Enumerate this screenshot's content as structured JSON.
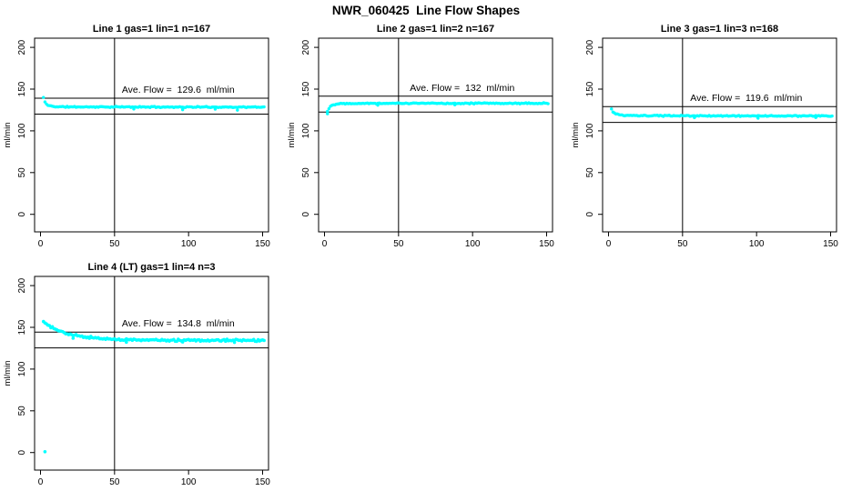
{
  "page": {
    "title": "NWR_060425  Line Flow Shapes",
    "background": "#ffffff"
  },
  "chart_data": {
    "type": "scatter",
    "title": "NWR_060425  Line Flow Shapes",
    "layout": {
      "rows": 2,
      "cols": 3,
      "occupied_cells": 4,
      "grid": "white background, black axis boxes, no gridlines"
    },
    "shared": {
      "xlabel": "",
      "ylabel": "ml/min",
      "xticks": [
        0,
        50,
        100,
        150
      ],
      "yticks": [
        0,
        50,
        100,
        150,
        200
      ],
      "xlim": [
        -4,
        154
      ],
      "ylim": [
        -21,
        211
      ],
      "vline_x": 50,
      "point_color": "#00ffff",
      "axis_color": "#000000"
    },
    "panels": [
      {
        "row": 0,
        "col": 0,
        "seed": 11,
        "title": "Line 1 gas=1 lin=1 n=167",
        "annotation": "Ave. Flow =  129.6  ml/min",
        "ave_flow": 129.6,
        "n": 167,
        "hlines": [
          139.1,
          120.1
        ],
        "n_points": 150,
        "noise": 0.8,
        "point_r": 1.7,
        "keypoints": [
          [
            2,
            140
          ],
          [
            3,
            134.5
          ],
          [
            4,
            131.8
          ],
          [
            5,
            130.8
          ],
          [
            6,
            130.2
          ],
          [
            8,
            129.4
          ],
          [
            10,
            129.0
          ],
          [
            14,
            128.8
          ],
          [
            20,
            128.7
          ],
          [
            60,
            128.6
          ],
          [
            150,
            128.4
          ]
        ],
        "extra_points": [
          [
            63,
            126.2
          ],
          [
            96,
            125.3
          ],
          [
            118,
            126.0
          ],
          [
            133,
            124.8
          ]
        ]
      },
      {
        "row": 0,
        "col": 1,
        "seed": 22,
        "title": "Line 2 gas=1 lin=2 n=167",
        "annotation": "Ave. Flow =  132  ml/min",
        "ave_flow": 132,
        "n": 167,
        "hlines": [
          141.5,
          122.5
        ],
        "n_points": 150,
        "noise": 0.8,
        "point_r": 1.7,
        "keypoints": [
          [
            2,
            123.5
          ],
          [
            3,
            127.0
          ],
          [
            4,
            129.2
          ],
          [
            5,
            130.5
          ],
          [
            6,
            131.3
          ],
          [
            8,
            132.2
          ],
          [
            10,
            132.6
          ],
          [
            14,
            132.9
          ],
          [
            20,
            133.0
          ],
          [
            150,
            133.0
          ]
        ],
        "extra_points": [
          [
            2,
            120.5
          ],
          [
            36,
            130.8
          ],
          [
            88,
            131.2
          ]
        ]
      },
      {
        "row": 0,
        "col": 2,
        "seed": 33,
        "title": "Line 3 gas=1 lin=3 n=168",
        "annotation": "Ave. Flow =  119.6  ml/min",
        "ave_flow": 119.6,
        "n": 168,
        "hlines": [
          129.1,
          110.1
        ],
        "n_points": 150,
        "noise": 0.8,
        "point_r": 1.7,
        "keypoints": [
          [
            2,
            126
          ],
          [
            3,
            122.8
          ],
          [
            4,
            121.2
          ],
          [
            5,
            120.3
          ],
          [
            6,
            119.7
          ],
          [
            8,
            119.0
          ],
          [
            10,
            118.6
          ],
          [
            14,
            118.3
          ],
          [
            20,
            118.1
          ],
          [
            60,
            118.0
          ],
          [
            150,
            117.8
          ]
        ],
        "extra_points": [
          [
            58,
            115.8
          ],
          [
            101,
            115.2
          ],
          [
            140,
            116.0
          ]
        ]
      },
      {
        "row": 1,
        "col": 0,
        "seed": 44,
        "title": "Line 4 (LT) gas=1 lin=4 n=3",
        "annotation": "Ave. Flow =  134.8  ml/min",
        "ave_flow": 134.8,
        "n": 3,
        "hlines": [
          144.3,
          125.3
        ],
        "n_points": 150,
        "noise": 1.5,
        "point_r": 1.8,
        "keypoints": [
          [
            2,
            157
          ],
          [
            3,
            155.5
          ],
          [
            4,
            154
          ],
          [
            5,
            152.8
          ],
          [
            6,
            151.6
          ],
          [
            8,
            149.6
          ],
          [
            10,
            147.8
          ],
          [
            12,
            146.2
          ],
          [
            14,
            144.8
          ],
          [
            16,
            143.6
          ],
          [
            18,
            142.6
          ],
          [
            20,
            141.7
          ],
          [
            24,
            140.2
          ],
          [
            28,
            139.0
          ],
          [
            32,
            138.1
          ],
          [
            36,
            137.4
          ],
          [
            40,
            136.8
          ],
          [
            45,
            136.2
          ],
          [
            50,
            135.7
          ],
          [
            60,
            135.1
          ],
          [
            70,
            134.8
          ],
          [
            85,
            134.6
          ],
          [
            100,
            134.5
          ],
          [
            120,
            134.4
          ],
          [
            150,
            134.3
          ]
        ],
        "extra_points": [
          [
            3,
            1
          ],
          [
            22,
            137.0
          ],
          [
            58,
            132.2
          ],
          [
            96,
            132.5
          ],
          [
            131,
            132.0
          ]
        ]
      }
    ]
  }
}
